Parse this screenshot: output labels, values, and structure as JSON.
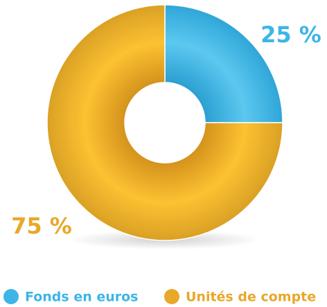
{
  "chart_data": {
    "type": "donut",
    "categories": [
      "Fonds en euros",
      "Unités de compte"
    ],
    "values": [
      25,
      75
    ],
    "value_labels": [
      "25 %",
      "75 %"
    ],
    "colors": [
      "#3db5e6",
      "#e8a82a"
    ]
  }
}
